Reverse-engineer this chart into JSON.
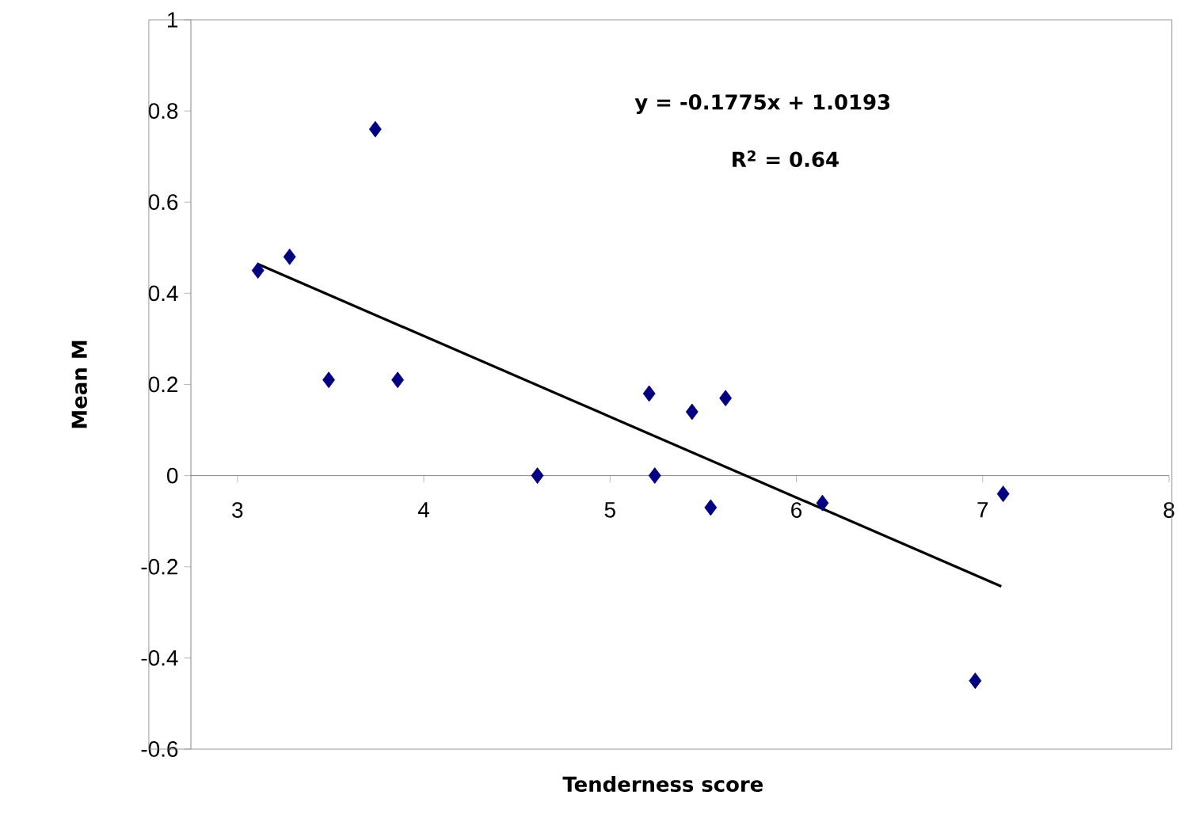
{
  "chart_data": {
    "type": "scatter",
    "xlabel": "Tenderness score",
    "ylabel": "Mean M",
    "annotations": [
      "y = -0.1775x + 1.0193",
      "R$^{2}$ = 0.64"
    ],
    "xlim": [
      2.75,
      8
    ],
    "ylim": [
      -0.6,
      1
    ],
    "xticks": [
      3,
      4,
      5,
      6,
      7,
      8
    ],
    "yticks": [
      -0.6,
      -0.4,
      -0.2,
      0,
      0.2,
      0.4,
      0.6,
      0.8,
      1
    ],
    "grid": false,
    "marker": "diamond",
    "line_style": "solid",
    "series": [
      {
        "color": "#000080",
        "x": [
          3.11,
          3.28,
          3.49,
          3.74,
          3.86,
          4.61,
          5.21,
          5.24,
          5.44,
          5.54,
          5.62,
          6.14,
          6.96,
          7.11
        ],
        "values": [
          0.45,
          0.48,
          0.21,
          0.76,
          0.21,
          0,
          0.18,
          0,
          0.14,
          -0.07,
          0.17,
          -0.06,
          -0.45,
          -0.04
        ]
      },
      {
        "type": "line",
        "marker": "none",
        "color": "#000000",
        "x": [
          3.11,
          7.1
        ],
        "values": [
          0.464,
          -0.243
        ]
      }
    ]
  }
}
